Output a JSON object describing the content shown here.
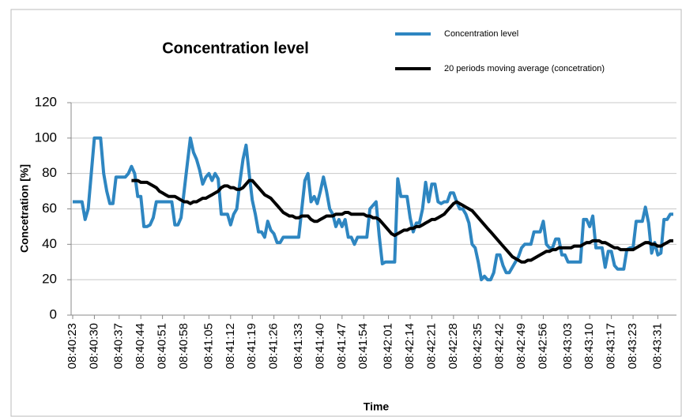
{
  "chart_data": {
    "type": "line",
    "title": "Concentration level",
    "x_label": "Time",
    "y_label": "Concetration [%]",
    "categories": [
      "08:40:23",
      null,
      null,
      null,
      null,
      null,
      null,
      "08:40:30",
      null,
      null,
      null,
      null,
      null,
      null,
      null,
      "08:40:37",
      null,
      null,
      null,
      null,
      null,
      null,
      "08:40:44",
      null,
      null,
      null,
      null,
      null,
      null,
      "08:40:51",
      null,
      null,
      null,
      null,
      null,
      null,
      "08:40:58",
      null,
      null,
      null,
      null,
      null,
      null,
      null,
      "08:41:05",
      null,
      null,
      null,
      null,
      null,
      null,
      "08:41:12",
      null,
      null,
      null,
      null,
      null,
      null,
      "08:41:19",
      null,
      null,
      null,
      null,
      null,
      null,
      "08:41:26",
      null,
      null,
      null,
      null,
      null,
      null,
      null,
      "08:41:33",
      null,
      null,
      null,
      null,
      null,
      null,
      "08:41:40",
      null,
      null,
      null,
      null,
      null,
      null,
      "08:41:47",
      null,
      null,
      null,
      null,
      null,
      null,
      "08:41:54",
      null,
      null,
      null,
      null,
      null,
      null,
      null,
      "08:42:01",
      null,
      null,
      null,
      null,
      null,
      null,
      "08:42:14",
      null,
      null,
      null,
      null,
      null,
      null,
      "08:42:21",
      null,
      null,
      null,
      null,
      null,
      null,
      "08:42:28",
      null,
      null,
      null,
      null,
      null,
      null,
      null,
      "08:42:35",
      null,
      null,
      null,
      null,
      null,
      null,
      "08:42:42",
      null,
      null,
      null,
      null,
      null,
      null,
      "08:42:49",
      null,
      null,
      null,
      null,
      null,
      null,
      "08:42:56",
      null,
      null,
      null,
      null,
      null,
      null,
      null,
      "08:43:03",
      null,
      null,
      null,
      null,
      null,
      null,
      "08:43:10",
      null,
      null,
      null,
      null,
      null,
      null,
      "08:43:17",
      null,
      null,
      null,
      null,
      null,
      null,
      "08:43:23",
      null,
      null,
      null,
      null,
      null,
      null,
      null,
      "08:43:31",
      null,
      null,
      null,
      null,
      null
    ],
    "series": [
      {
        "name": "Concentration level",
        "color": "#2e86c1",
        "width": 4,
        "values": [
          64,
          64,
          64,
          64,
          54,
          60,
          80,
          100,
          100,
          100,
          80,
          70,
          63,
          63,
          78,
          78,
          78,
          78,
          80,
          84,
          80,
          67,
          67,
          50,
          50,
          51,
          55,
          64,
          64,
          64,
          64,
          64,
          64,
          51,
          51,
          55,
          70,
          85,
          100,
          92,
          88,
          82,
          74,
          78,
          80,
          76,
          80,
          77,
          57,
          57,
          57,
          51,
          57,
          60,
          75,
          88,
          96,
          80,
          65,
          57,
          47,
          47,
          44,
          53,
          48,
          46,
          41,
          41,
          44,
          44,
          44,
          44,
          44,
          44,
          60,
          76,
          80,
          64,
          67,
          63,
          70,
          78,
          70,
          60,
          57,
          50,
          54,
          50,
          54,
          44,
          44,
          40,
          44,
          44,
          44,
          44,
          60,
          62,
          64,
          45,
          29,
          30,
          30,
          30,
          30,
          77,
          67,
          67,
          67,
          55,
          47,
          52,
          52,
          60,
          75,
          64,
          74,
          74,
          64,
          63,
          64,
          64,
          69,
          69,
          64,
          60,
          60,
          57,
          52,
          40,
          38,
          30,
          20,
          22,
          20,
          20,
          24,
          34,
          34,
          28,
          24,
          24,
          27,
          30,
          33,
          38,
          40,
          40,
          40,
          47,
          47,
          47,
          53,
          40,
          38,
          38,
          43,
          43,
          34,
          34,
          30,
          30,
          30,
          30,
          30,
          54,
          54,
          50,
          56,
          38,
          38,
          38,
          27,
          36,
          36,
          28,
          26,
          26,
          26,
          37,
          38,
          38,
          53,
          53,
          53,
          61,
          52,
          35,
          41,
          34,
          35,
          54,
          54,
          57,
          57
        ]
      },
      {
        "name": "20 periods moving average (concetration)",
        "color": "#000000",
        "width": 4,
        "values": [
          null,
          null,
          null,
          null,
          null,
          null,
          null,
          null,
          null,
          null,
          null,
          null,
          null,
          null,
          null,
          null,
          null,
          null,
          null,
          76,
          76,
          76,
          75,
          75,
          75,
          74,
          73,
          72,
          70,
          69,
          68,
          67,
          67,
          67,
          66,
          65,
          64,
          64,
          63,
          64,
          64,
          65,
          66,
          66,
          67,
          68,
          69,
          70,
          72,
          73,
          73,
          72,
          72,
          71,
          71,
          72,
          74,
          76,
          76,
          74,
          72,
          70,
          68,
          67,
          66,
          64,
          62,
          60,
          58,
          57,
          56,
          56,
          55,
          55,
          56,
          56,
          56,
          54,
          53,
          53,
          54,
          55,
          56,
          56,
          56,
          57,
          57,
          57,
          58,
          58,
          57,
          57,
          57,
          57,
          57,
          56,
          56,
          55,
          55,
          54,
          52,
          50,
          48,
          46,
          45,
          46,
          47,
          48,
          48,
          49,
          49,
          50,
          50,
          51,
          52,
          53,
          54,
          54,
          55,
          56,
          57,
          59,
          61,
          63,
          64,
          63,
          62,
          61,
          60,
          59,
          57,
          55,
          53,
          51,
          49,
          47,
          45,
          43,
          41,
          39,
          37,
          35,
          33,
          32,
          31,
          30,
          30,
          31,
          31,
          32,
          33,
          34,
          35,
          36,
          36,
          37,
          37,
          38,
          38,
          38,
          38,
          38,
          39,
          39,
          39,
          40,
          41,
          41,
          42,
          42,
          42,
          41,
          41,
          40,
          39,
          38,
          38,
          37,
          37,
          37,
          37,
          37,
          38,
          39,
          40,
          41,
          41,
          40,
          40,
          39,
          39,
          40,
          41,
          42,
          42
        ]
      }
    ],
    "ylim": [
      0,
      120
    ],
    "yticks": [
      0,
      20,
      40,
      60,
      80,
      100,
      120
    ],
    "grid": true,
    "legend": "top-right"
  }
}
